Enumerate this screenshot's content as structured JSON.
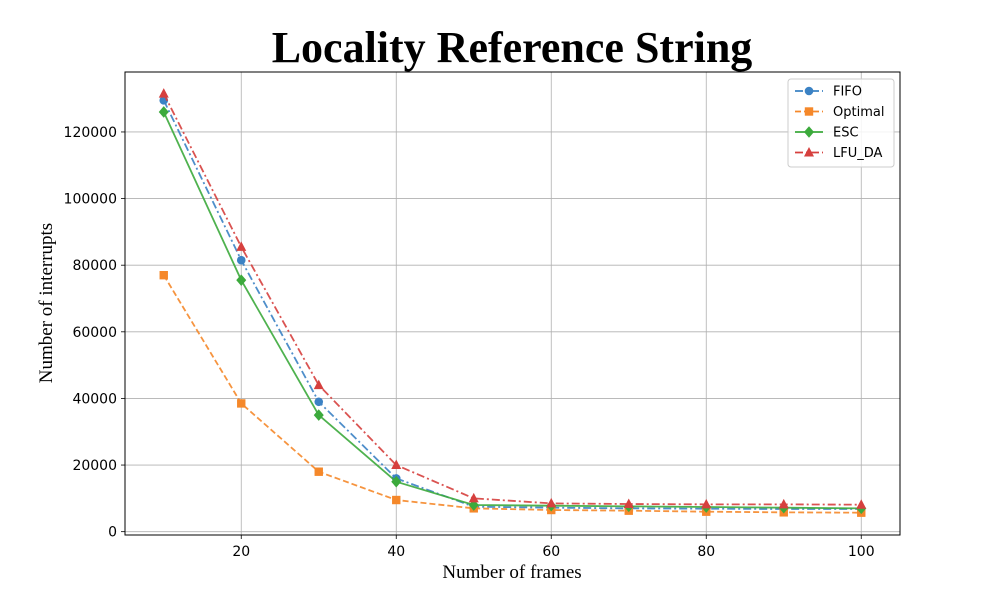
{
  "chart_data": {
    "type": "line",
    "title": "Locality Reference String",
    "xlabel": "Number of frames",
    "ylabel": "Number of interrupts",
    "xlim": [
      5,
      105
    ],
    "ylim": [
      -1000,
      138000
    ],
    "xticks": [
      20,
      40,
      60,
      80,
      100
    ],
    "yticks": [
      0,
      20000,
      40000,
      60000,
      80000,
      100000,
      120000
    ],
    "grid": true,
    "legend_position": "top-right",
    "x": [
      10,
      20,
      30,
      40,
      50,
      60,
      70,
      80,
      90,
      100
    ],
    "series": [
      {
        "name": "FIFO",
        "color": "#3b82c4",
        "marker": "circle",
        "linestyle": "dashdot",
        "values": [
          129500,
          81500,
          39000,
          16000,
          7500,
          7200,
          7000,
          6900,
          6800,
          6800
        ]
      },
      {
        "name": "Optimal",
        "color": "#f5882a",
        "marker": "square",
        "linestyle": "dashed",
        "values": [
          77000,
          38500,
          18000,
          9500,
          7000,
          6500,
          6300,
          6000,
          5800,
          5700
        ]
      },
      {
        "name": "ESC",
        "color": "#3caa3c",
        "marker": "diamond",
        "linestyle": "solid",
        "values": [
          126000,
          75500,
          35000,
          15000,
          8000,
          7800,
          7600,
          7400,
          7200,
          7000
        ]
      },
      {
        "name": "LFU_DA",
        "color": "#d6403e",
        "marker": "triangle",
        "linestyle": "dashdot",
        "values": [
          131500,
          85500,
          44000,
          20000,
          10000,
          8500,
          8300,
          8200,
          8200,
          8100
        ]
      }
    ]
  }
}
